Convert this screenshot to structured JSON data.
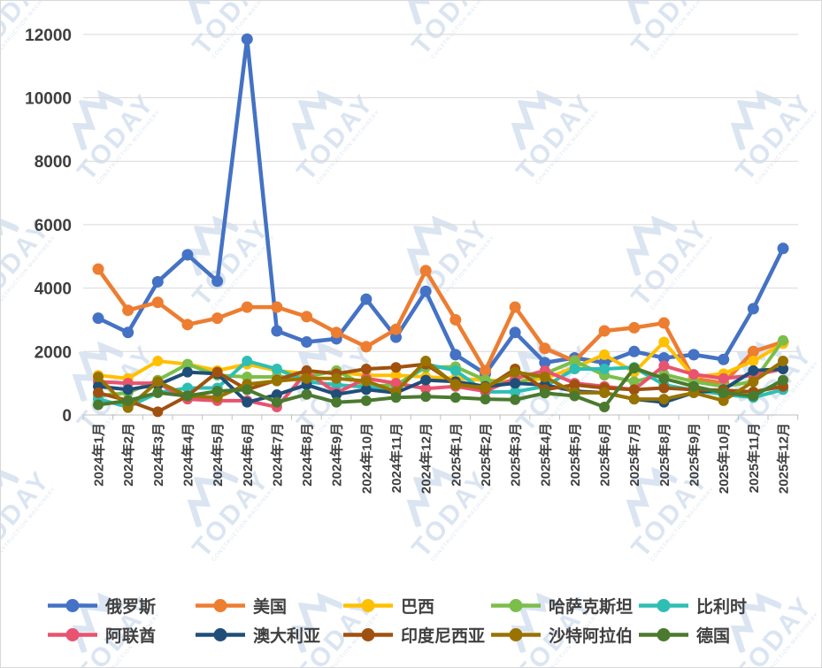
{
  "watermark": {
    "brand": "TODAY",
    "tagline": "CONSTRUCTION MACHINERY"
  },
  "chart_data": {
    "type": "line",
    "title": "",
    "xlabel": "",
    "ylabel": "",
    "ylim": [
      0,
      12000
    ],
    "yticks": [
      0,
      2000,
      4000,
      6000,
      8000,
      10000,
      12000
    ],
    "grid": "horizontal",
    "legend_position": "bottom",
    "categories": [
      "2024年1月",
      "2024年2月",
      "2024年3月",
      "2024年4月",
      "2024年5月",
      "2024年6月",
      "2024年7月",
      "2024年8月",
      "2024年9月",
      "2024年10月",
      "2024年11月",
      "2024年12月",
      "2025年1月",
      "2025年2月",
      "2025年3月",
      "2025年4月",
      "2025年5月",
      "2025年6月",
      "2025年7月",
      "2025年8月",
      "2025年9月",
      "2025年10月",
      "2025年11月",
      "2025年12月"
    ],
    "series": [
      {
        "name": "俄罗斯",
        "color": "#4472C4",
        "values": [
          3050,
          2600,
          4200,
          5050,
          4220,
          11850,
          2650,
          2300,
          2400,
          3650,
          2450,
          3900,
          1900,
          1300,
          2600,
          1650,
          1800,
          1650,
          2000,
          1800,
          1900,
          1750,
          3350,
          5250
        ]
      },
      {
        "name": "美国",
        "color": "#ED7D31",
        "values": [
          4600,
          3300,
          3550,
          2850,
          3050,
          3400,
          3400,
          3100,
          2600,
          2150,
          2700,
          4550,
          3000,
          1400,
          3400,
          2100,
          1700,
          2650,
          2750,
          2900,
          1150,
          1000,
          2000,
          2300
        ]
      },
      {
        "name": "巴西",
        "color": "#FFC000",
        "values": [
          1250,
          1150,
          1700,
          1600,
          1400,
          1600,
          1400,
          1300,
          1350,
          1250,
          1250,
          1200,
          1150,
          1100,
          1050,
          1150,
          1500,
          1900,
          1350,
          2300,
          1200,
          1300,
          1700,
          2250
        ]
      },
      {
        "name": "哈萨克斯坦",
        "color": "#7BBE4A",
        "values": [
          600,
          700,
          1100,
          1600,
          1250,
          1200,
          1200,
          1200,
          1400,
          900,
          950,
          1500,
          1520,
          1100,
          980,
          1300,
          1700,
          1250,
          1050,
          1280,
          1050,
          900,
          1050,
          2350
        ]
      },
      {
        "name": "比利时",
        "color": "#2EBEB4",
        "values": [
          500,
          250,
          700,
          850,
          850,
          1700,
          1450,
          1050,
          950,
          880,
          800,
          1600,
          1400,
          730,
          730,
          900,
          1450,
          1450,
          1500,
          950,
          780,
          650,
          550,
          800
        ]
      },
      {
        "name": "阿联酋",
        "color": "#E8536F",
        "values": [
          1050,
          1000,
          1000,
          500,
          450,
          450,
          250,
          1350,
          700,
          1150,
          1000,
          830,
          900,
          750,
          1150,
          1400,
          1000,
          900,
          800,
          1550,
          1280,
          1150,
          1250,
          1450
        ]
      },
      {
        "name": "澳大利亚",
        "color": "#1F4E79",
        "values": [
          900,
          800,
          950,
          1350,
          1300,
          400,
          640,
          950,
          650,
          800,
          700,
          1100,
          1050,
          900,
          1000,
          950,
          750,
          700,
          500,
          400,
          700,
          800,
          1400,
          1450
        ]
      },
      {
        "name": "印度尼西亚",
        "color": "#A0510F",
        "values": [
          700,
          450,
          100,
          600,
          1350,
          800,
          1100,
          1400,
          1300,
          1450,
          1500,
          1600,
          980,
          840,
          1450,
          800,
          950,
          850,
          800,
          850,
          800,
          780,
          730,
          900
        ]
      },
      {
        "name": "沙特阿拉伯",
        "color": "#997300",
        "values": [
          1200,
          230,
          1050,
          600,
          550,
          970,
          1070,
          1150,
          1150,
          1070,
          730,
          1700,
          950,
          870,
          1350,
          1200,
          700,
          700,
          500,
          500,
          700,
          450,
          1050,
          1700
        ]
      },
      {
        "name": "德国",
        "color": "#4A7A2E",
        "values": [
          320,
          450,
          700,
          600,
          750,
          800,
          400,
          650,
          400,
          450,
          550,
          580,
          550,
          500,
          480,
          690,
          600,
          250,
          1480,
          1150,
          900,
          700,
          600,
          1100
        ]
      }
    ]
  }
}
